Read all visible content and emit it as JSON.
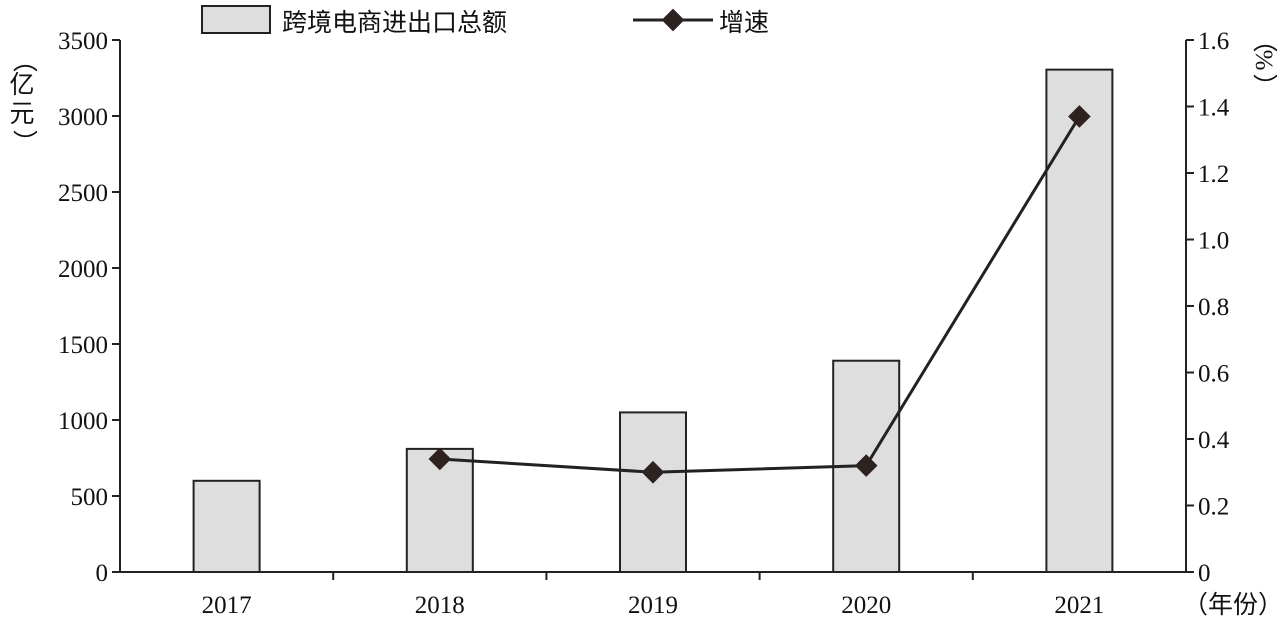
{
  "chart_data": {
    "type": "bar",
    "categories": [
      "2017",
      "2018",
      "2019",
      "2020",
      "2021"
    ],
    "series": [
      {
        "name": "跨境电商进出口总额",
        "type": "bar",
        "axis": "left",
        "values": [
          600,
          810,
          1050,
          1390,
          3305
        ]
      },
      {
        "name": "增速",
        "type": "line",
        "axis": "right",
        "values": [
          null,
          0.34,
          0.3,
          0.32,
          1.37
        ]
      }
    ],
    "left_axis": {
      "label_parts": [
        "（",
        "亿",
        "元",
        "）"
      ],
      "range": [
        0,
        3500
      ],
      "ticks": [
        "0",
        "500",
        "1000",
        "1500",
        "2000",
        "2500",
        "3000",
        "3500"
      ]
    },
    "right_axis": {
      "label_parts": [
        "（",
        "%",
        "）"
      ],
      "range": [
        0,
        1.6
      ],
      "ticks": [
        "0",
        "0.2",
        "0.4",
        "0.6",
        "0.8",
        "1.0",
        "1.2",
        "1.4",
        "1.6"
      ]
    },
    "xlabel": "（年份）",
    "legend_position": "top",
    "grid": false,
    "colors": {
      "bar_fill": "#dedede",
      "bar_stroke": "#222222",
      "line": "#222222",
      "marker": "#2e2220"
    }
  }
}
